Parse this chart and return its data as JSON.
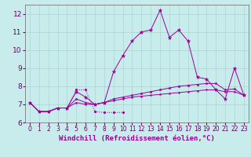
{
  "title": "",
  "xlabel": "Windchill (Refroidissement éolien,°C)",
  "ylabel": "",
  "background_color": "#c8ecec",
  "grid_color": "#aad4d4",
  "line_color": "#990099",
  "x_values": [
    0,
    1,
    2,
    3,
    4,
    5,
    6,
    7,
    8,
    9,
    10,
    11,
    12,
    13,
    14,
    15,
    16,
    17,
    18,
    19,
    20,
    21,
    22,
    23
  ],
  "series2": [
    7.1,
    6.6,
    6.6,
    6.8,
    6.8,
    7.7,
    7.4,
    7.0,
    7.1,
    8.8,
    9.7,
    10.5,
    11.0,
    11.1,
    12.2,
    10.7,
    11.1,
    10.5,
    8.5,
    8.4,
    7.8,
    7.3,
    9.0,
    7.5
  ],
  "series3": [
    7.1,
    6.6,
    6.6,
    6.8,
    6.8,
    7.3,
    7.1,
    7.0,
    7.1,
    7.3,
    7.4,
    7.5,
    7.6,
    7.7,
    7.8,
    7.9,
    8.0,
    8.05,
    8.1,
    8.15,
    8.15,
    7.8,
    7.85,
    7.5
  ],
  "series4": [
    7.1,
    6.6,
    6.6,
    6.8,
    6.8,
    7.1,
    7.0,
    7.0,
    7.1,
    7.2,
    7.3,
    7.4,
    7.45,
    7.5,
    7.55,
    7.6,
    7.65,
    7.7,
    7.75,
    7.8,
    7.8,
    7.7,
    7.7,
    7.5
  ],
  "series1_x": [
    0,
    1,
    2,
    3,
    4,
    5,
    6,
    7,
    8,
    9,
    10
  ],
  "series1_y": [
    7.1,
    6.6,
    6.6,
    6.8,
    6.8,
    7.8,
    7.8,
    6.6,
    6.55,
    6.55,
    6.55
  ],
  "ylim": [
    6.0,
    12.5
  ],
  "xlim": [
    -0.5,
    23.5
  ],
  "yticks": [
    6,
    7,
    8,
    9,
    10,
    11,
    12
  ],
  "xticks": [
    0,
    1,
    2,
    3,
    4,
    5,
    6,
    7,
    8,
    9,
    10,
    11,
    12,
    13,
    14,
    15,
    16,
    17,
    18,
    19,
    20,
    21,
    22,
    23
  ],
  "xlabel_fontsize": 6.5,
  "ytick_fontsize": 6.5,
  "xtick_fontsize": 5.5
}
